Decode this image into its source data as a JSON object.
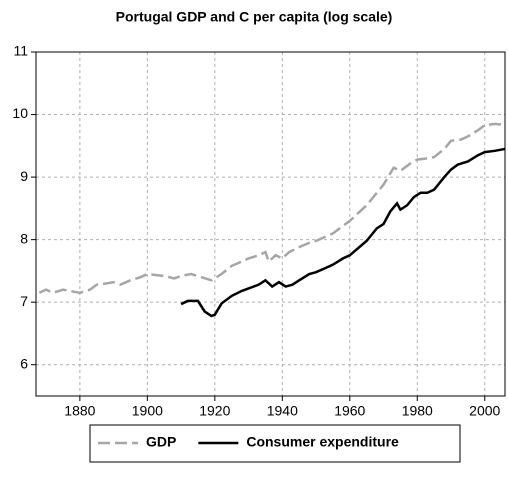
{
  "chart_data": {
    "type": "line",
    "title": "Portugal GDP and C per capita (log scale)",
    "xlim": [
      1867,
      2006
    ],
    "xticks": [
      1880,
      1900,
      1920,
      1940,
      1960,
      1980,
      2000
    ],
    "ylim": [
      5.5,
      11
    ],
    "yticks": [
      6,
      7,
      8,
      9,
      10,
      11
    ],
    "grid": true,
    "legend": "bottom",
    "series": [
      {
        "name": "GDP",
        "color": "#a6a6a6",
        "dash": true,
        "x": [
          1868,
          1870,
          1872,
          1875,
          1878,
          1880,
          1883,
          1885,
          1888,
          1890,
          1892,
          1895,
          1898,
          1900,
          1903,
          1905,
          1908,
          1910,
          1913,
          1916,
          1919,
          1922,
          1925,
          1928,
          1930,
          1933,
          1935,
          1936,
          1938,
          1940,
          1942,
          1945,
          1948,
          1950,
          1955,
          1960,
          1965,
          1970,
          1973,
          1975,
          1978,
          1980,
          1983,
          1985,
          1988,
          1990,
          1993,
          1995,
          1998,
          2000,
          2003,
          2005
        ],
        "values": [
          7.15,
          7.2,
          7.15,
          7.2,
          7.17,
          7.15,
          7.2,
          7.28,
          7.3,
          7.32,
          7.28,
          7.35,
          7.4,
          7.45,
          7.43,
          7.42,
          7.38,
          7.42,
          7.45,
          7.4,
          7.35,
          7.45,
          7.58,
          7.65,
          7.7,
          7.75,
          7.8,
          7.65,
          7.75,
          7.7,
          7.8,
          7.88,
          7.95,
          7.98,
          8.1,
          8.3,
          8.55,
          8.88,
          9.15,
          9.1,
          9.22,
          9.28,
          9.3,
          9.32,
          9.45,
          9.58,
          9.6,
          9.65,
          9.75,
          9.83,
          9.85,
          9.84
        ]
      },
      {
        "name": "Consumer expenditure",
        "color": "#000000",
        "dash": false,
        "x": [
          1910,
          1912,
          1915,
          1917,
          1919,
          1920,
          1922,
          1925,
          1928,
          1930,
          1933,
          1935,
          1937,
          1939,
          1941,
          1943,
          1945,
          1948,
          1950,
          1953,
          1955,
          1958,
          1960,
          1965,
          1968,
          1970,
          1972,
          1974,
          1975,
          1977,
          1979,
          1981,
          1983,
          1985,
          1988,
          1990,
          1992,
          1995,
          1998,
          2000,
          2003,
          2006
        ],
        "values": [
          6.97,
          7.02,
          7.02,
          6.85,
          6.78,
          6.8,
          6.98,
          7.1,
          7.18,
          7.22,
          7.28,
          7.35,
          7.25,
          7.32,
          7.25,
          7.28,
          7.35,
          7.45,
          7.48,
          7.55,
          7.6,
          7.7,
          7.75,
          7.98,
          8.18,
          8.25,
          8.45,
          8.58,
          8.48,
          8.55,
          8.68,
          8.75,
          8.75,
          8.8,
          9.0,
          9.12,
          9.2,
          9.25,
          9.35,
          9.4,
          9.42,
          9.45
        ]
      }
    ]
  }
}
